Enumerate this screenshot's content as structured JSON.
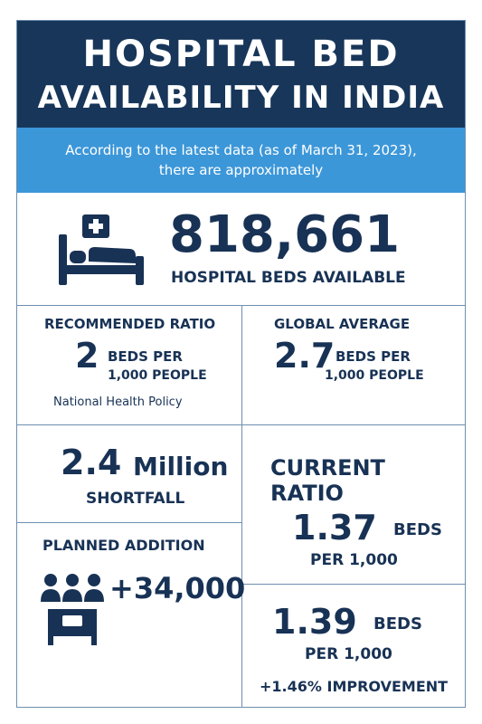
{
  "header": {
    "title_line1": "HOSPITAL BED",
    "title_line2": "AVAILABILITY IN INDIA"
  },
  "intro": {
    "line1": "According to the latest data (as of March 31, 2023),",
    "line2": "there are approximately"
  },
  "total": {
    "icon": "hospital-bed-icon",
    "value": "818,661",
    "label": "HOSPITAL BEDS AVAILABLE"
  },
  "recommended": {
    "title": "RECOMMENDED RATIO",
    "value": "2",
    "unit_line1": "BEDS PER",
    "unit_line2": "1,000 PEOPLE",
    "source": "National Health Policy"
  },
  "global": {
    "title": "GLOBAL AVERAGE",
    "value": "2.7",
    "unit_line1": "BEDS PER",
    "unit_line2": "1,000 PEOPLE"
  },
  "shortfall": {
    "value": "2.4",
    "unit": "Million",
    "label": "SHORTFALL"
  },
  "current": {
    "title_line1": "CURRENT",
    "title_line2": "RATIO",
    "value": "1.37",
    "unit_line1": "BEDS",
    "unit_line2": "PER 1,000"
  },
  "planned": {
    "title": "PLANNED ADDITION",
    "icon": "people-bed-icon",
    "value": "+34,000"
  },
  "improved": {
    "value": "1.39",
    "unit_line1": "BEDS",
    "unit_line2": "PER 1,000",
    "change": "+1.46% IMPROVEMENT"
  },
  "colors": {
    "navy": "#173659",
    "blue": "#3c97d9",
    "border": "#6f8fb0"
  }
}
